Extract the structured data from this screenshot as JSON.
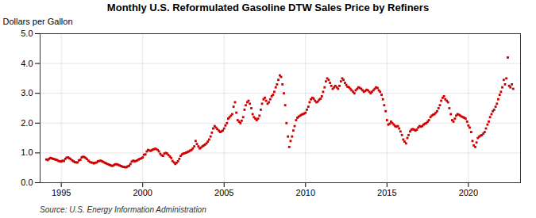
{
  "chart_data": {
    "type": "scatter",
    "title": "Monthly U.S. Reformulated Gasoline DTW Sales Price by Refiners",
    "ylabel": "Dollars per Gallon",
    "source": "Source: U.S. Energy Information Administration",
    "color": "#cc0000",
    "marker": "square",
    "grid": true,
    "xlim": [
      1993.7,
      2023.2
    ],
    "ylim": [
      0.0,
      5.0
    ],
    "xticks": [
      1995,
      2000,
      2005,
      2010,
      2015,
      2020
    ],
    "yticks": [
      {
        "value": 0.0,
        "label": "0.0"
      },
      {
        "value": 1.0,
        "label": "1.0"
      },
      {
        "value": 2.0,
        "label": "2.0"
      },
      {
        "value": 3.0,
        "label": "3.0"
      },
      {
        "value": 4.0,
        "label": "4.0"
      },
      {
        "value": 5.0,
        "label": "5.0"
      }
    ],
    "x": [
      1994.08,
      1994.17,
      1994.25,
      1994.33,
      1994.42,
      1994.5,
      1994.58,
      1994.67,
      1994.75,
      1994.83,
      1994.92,
      1995.0,
      1995.08,
      1995.17,
      1995.25,
      1995.33,
      1995.42,
      1995.5,
      1995.58,
      1995.67,
      1995.75,
      1995.83,
      1995.92,
      1996.0,
      1996.08,
      1996.17,
      1996.25,
      1996.33,
      1996.42,
      1996.5,
      1996.58,
      1996.67,
      1996.75,
      1996.83,
      1996.92,
      1997.0,
      1997.08,
      1997.17,
      1997.25,
      1997.33,
      1997.42,
      1997.5,
      1997.58,
      1997.67,
      1997.75,
      1997.83,
      1997.92,
      1998.0,
      1998.08,
      1998.17,
      1998.25,
      1998.33,
      1998.42,
      1998.5,
      1998.58,
      1998.67,
      1998.75,
      1998.83,
      1998.92,
      1999.0,
      1999.08,
      1999.17,
      1999.25,
      1999.33,
      1999.42,
      1999.5,
      1999.58,
      1999.67,
      1999.75,
      1999.83,
      1999.92,
      2000.0,
      2000.08,
      2000.17,
      2000.25,
      2000.33,
      2000.42,
      2000.5,
      2000.58,
      2000.67,
      2000.75,
      2000.83,
      2000.92,
      2001.0,
      2001.08,
      2001.17,
      2001.25,
      2001.33,
      2001.42,
      2001.5,
      2001.58,
      2001.67,
      2001.75,
      2001.83,
      2001.92,
      2002.0,
      2002.08,
      2002.17,
      2002.25,
      2002.33,
      2002.42,
      2002.5,
      2002.58,
      2002.67,
      2002.75,
      2002.83,
      2002.92,
      2003.0,
      2003.08,
      2003.17,
      2003.25,
      2003.33,
      2003.42,
      2003.5,
      2003.58,
      2003.67,
      2003.75,
      2003.83,
      2003.92,
      2004.0,
      2004.08,
      2004.17,
      2004.25,
      2004.33,
      2004.42,
      2004.5,
      2004.58,
      2004.67,
      2004.75,
      2004.83,
      2004.92,
      2005.0,
      2005.08,
      2005.17,
      2005.25,
      2005.33,
      2005.42,
      2005.5,
      2005.58,
      2005.67,
      2005.75,
      2005.83,
      2005.92,
      2006.0,
      2006.08,
      2006.17,
      2006.25,
      2006.33,
      2006.42,
      2006.5,
      2006.58,
      2006.67,
      2006.75,
      2006.83,
      2006.92,
      2007.0,
      2007.08,
      2007.17,
      2007.25,
      2007.33,
      2007.42,
      2007.5,
      2007.58,
      2007.67,
      2007.75,
      2007.83,
      2007.92,
      2008.0,
      2008.08,
      2008.17,
      2008.25,
      2008.33,
      2008.42,
      2008.5,
      2008.58,
      2008.67,
      2008.75,
      2008.83,
      2008.92,
      2009.0,
      2009.08,
      2009.17,
      2009.25,
      2009.33,
      2009.42,
      2009.5,
      2009.58,
      2009.67,
      2009.75,
      2009.83,
      2009.92,
      2010.0,
      2010.08,
      2010.17,
      2010.25,
      2010.33,
      2010.42,
      2010.5,
      2010.58,
      2010.67,
      2010.75,
      2010.83,
      2010.92,
      2011.0,
      2011.08,
      2011.17,
      2011.25,
      2011.33,
      2011.42,
      2011.5,
      2011.58,
      2011.67,
      2011.75,
      2011.83,
      2011.92,
      2012.0,
      2012.08,
      2012.17,
      2012.25,
      2012.33,
      2012.42,
      2012.5,
      2012.58,
      2012.67,
      2012.75,
      2012.83,
      2012.92,
      2013.0,
      2013.08,
      2013.17,
      2013.25,
      2013.33,
      2013.42,
      2013.5,
      2013.58,
      2013.67,
      2013.75,
      2013.83,
      2013.92,
      2014.0,
      2014.08,
      2014.17,
      2014.25,
      2014.33,
      2014.42,
      2014.5,
      2014.58,
      2014.67,
      2014.75,
      2014.83,
      2014.92,
      2015.0,
      2015.08,
      2015.17,
      2015.25,
      2015.33,
      2015.42,
      2015.5,
      2015.58,
      2015.67,
      2015.75,
      2015.83,
      2015.92,
      2016.0,
      2016.08,
      2016.17,
      2016.25,
      2016.33,
      2016.42,
      2016.5,
      2016.58,
      2016.67,
      2016.75,
      2016.83,
      2016.92,
      2017.0,
      2017.08,
      2017.17,
      2017.25,
      2017.33,
      2017.42,
      2017.5,
      2017.58,
      2017.67,
      2017.75,
      2017.83,
      2017.92,
      2018.0,
      2018.08,
      2018.17,
      2018.25,
      2018.33,
      2018.42,
      2018.5,
      2018.58,
      2018.67,
      2018.75,
      2018.83,
      2018.92,
      2019.0,
      2019.08,
      2019.17,
      2019.25,
      2019.33,
      2019.42,
      2019.5,
      2019.58,
      2019.67,
      2019.75,
      2019.83,
      2019.92,
      2020.0,
      2020.08,
      2020.17,
      2020.25,
      2020.33,
      2020.42,
      2020.5,
      2020.58,
      2020.67,
      2020.75,
      2020.83,
      2020.92,
      2021.0,
      2021.08,
      2021.17,
      2021.25,
      2021.33,
      2021.42,
      2021.5,
      2021.58,
      2021.67,
      2021.75,
      2021.83,
      2021.92,
      2022.0,
      2022.08,
      2022.17,
      2022.25,
      2022.33,
      2022.42,
      2022.5,
      2022.58,
      2022.67,
      2022.75
    ],
    "values": [
      0.78,
      0.76,
      0.8,
      0.83,
      0.82,
      0.8,
      0.79,
      0.77,
      0.76,
      0.73,
      0.72,
      0.71,
      0.74,
      0.73,
      0.8,
      0.84,
      0.85,
      0.82,
      0.79,
      0.75,
      0.72,
      0.69,
      0.68,
      0.68,
      0.75,
      0.77,
      0.85,
      0.87,
      0.86,
      0.83,
      0.79,
      0.74,
      0.7,
      0.68,
      0.67,
      0.65,
      0.67,
      0.68,
      0.72,
      0.73,
      0.74,
      0.72,
      0.7,
      0.67,
      0.65,
      0.63,
      0.61,
      0.59,
      0.57,
      0.57,
      0.6,
      0.62,
      0.62,
      0.6,
      0.58,
      0.56,
      0.54,
      0.53,
      0.52,
      0.52,
      0.55,
      0.57,
      0.63,
      0.71,
      0.74,
      0.72,
      0.73,
      0.75,
      0.78,
      0.8,
      0.82,
      0.85,
      0.94,
      0.95,
      1.05,
      1.1,
      1.08,
      1.07,
      1.1,
      1.12,
      1.14,
      1.13,
      1.1,
      1.05,
      0.97,
      0.92,
      0.9,
      0.98,
      1.0,
      0.98,
      0.93,
      0.88,
      0.83,
      0.73,
      0.68,
      0.63,
      0.67,
      0.72,
      0.8,
      0.9,
      0.95,
      0.98,
      0.99,
      1.01,
      1.03,
      1.05,
      1.08,
      1.1,
      1.15,
      1.22,
      1.4,
      1.3,
      1.22,
      1.15,
      1.18,
      1.22,
      1.25,
      1.28,
      1.32,
      1.38,
      1.45,
      1.55,
      1.68,
      1.82,
      1.9,
      1.85,
      1.8,
      1.75,
      1.7,
      1.72,
      1.75,
      1.82,
      1.92,
      2.0,
      2.15,
      2.2,
      2.25,
      2.3,
      2.55,
      2.7,
      2.35,
      2.1,
      2.05,
      2.0,
      2.08,
      2.2,
      2.45,
      2.6,
      2.7,
      2.75,
      2.65,
      2.5,
      2.3,
      2.2,
      2.15,
      2.1,
      2.15,
      2.25,
      2.45,
      2.65,
      2.8,
      2.85,
      2.75,
      2.65,
      2.7,
      2.8,
      2.9,
      2.95,
      3.05,
      3.2,
      3.3,
      3.45,
      3.6,
      3.55,
      3.3,
      3.0,
      2.6,
      2.0,
      1.55,
      1.2,
      1.4,
      1.55,
      1.75,
      1.9,
      2.1,
      2.18,
      2.22,
      2.25,
      2.28,
      2.3,
      2.32,
      2.35,
      2.45,
      2.55,
      2.7,
      2.8,
      2.85,
      2.82,
      2.75,
      2.7,
      2.72,
      2.78,
      2.82,
      2.9,
      3.05,
      3.2,
      3.4,
      3.5,
      3.45,
      3.35,
      3.25,
      3.15,
      3.2,
      3.25,
      3.2,
      3.15,
      3.25,
      3.4,
      3.5,
      3.45,
      3.35,
      3.28,
      3.22,
      3.2,
      3.15,
      3.1,
      3.05,
      3.0,
      3.1,
      3.15,
      3.2,
      3.18,
      3.15,
      3.1,
      3.05,
      3.08,
      3.12,
      3.1,
      3.05,
      3.0,
      3.05,
      3.1,
      3.15,
      3.2,
      3.18,
      3.1,
      3.05,
      2.95,
      2.8,
      2.6,
      2.4,
      2.1,
      1.95,
      1.98,
      2.05,
      2.0,
      1.95,
      1.9,
      1.88,
      1.9,
      1.82,
      1.72,
      1.6,
      1.45,
      1.38,
      1.32,
      1.5,
      1.6,
      1.72,
      1.78,
      1.8,
      1.78,
      1.75,
      1.78,
      1.85,
      1.9,
      1.88,
      1.9,
      1.95,
      1.98,
      2.0,
      2.05,
      2.1,
      2.2,
      2.25,
      2.28,
      2.3,
      2.35,
      2.4,
      2.5,
      2.6,
      2.75,
      2.85,
      2.9,
      2.8,
      2.75,
      2.7,
      2.5,
      2.3,
      2.1,
      2.05,
      2.15,
      2.25,
      2.3,
      2.28,
      2.25,
      2.22,
      2.2,
      2.18,
      2.15,
      2.05,
      1.92,
      1.85,
      1.7,
      1.4,
      1.25,
      1.2,
      1.35,
      1.5,
      1.55,
      1.58,
      1.6,
      1.65,
      1.7,
      1.82,
      1.95,
      2.05,
      2.2,
      2.3,
      2.4,
      2.45,
      2.55,
      2.65,
      2.8,
      2.95,
      3.05,
      3.2,
      3.45,
      3.3,
      3.5,
      4.2,
      3.25,
      3.2,
      3.3,
      3.15
    ]
  }
}
